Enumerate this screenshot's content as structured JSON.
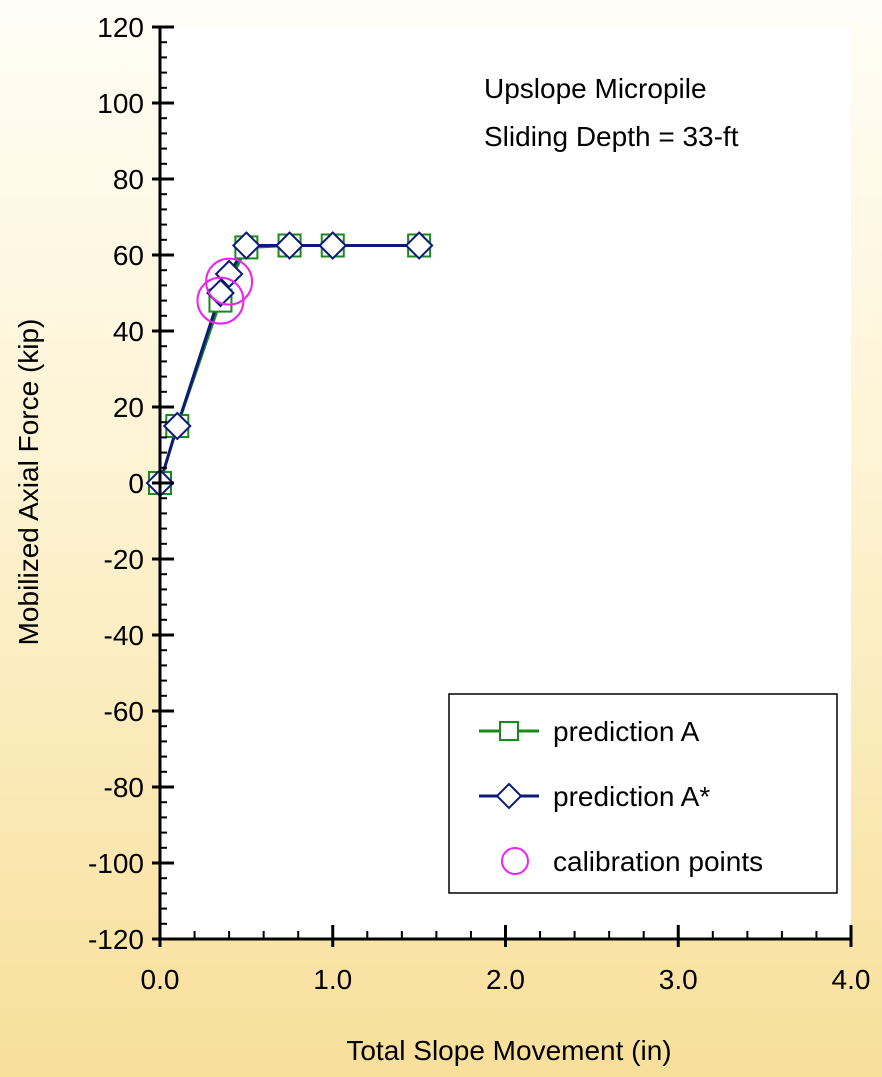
{
  "chart_data": {
    "type": "line",
    "title": "",
    "annotation": [
      "Upslope Micropile",
      "Sliding Depth = 33-ft"
    ],
    "xlabel": "Total Slope Movement (in)",
    "ylabel": "Mobilized Axial Force (kip)",
    "xlim": [
      0,
      4
    ],
    "ylim": [
      -120,
      120
    ],
    "x_major_ticks": [
      0,
      1,
      2,
      3,
      4
    ],
    "x_tick_labels": [
      "0.0",
      "1.0",
      "2.0",
      "3.0",
      "4.0"
    ],
    "x_minor_step": 0.2,
    "y_major_ticks": [
      -120,
      -100,
      -80,
      -60,
      -40,
      -20,
      0,
      20,
      40,
      60,
      80,
      100,
      120
    ],
    "y_tick_labels": [
      "-120",
      "-100",
      "-80",
      "-60",
      "-40",
      "-20",
      "0",
      "20",
      "40",
      "60",
      "80",
      "100",
      "120"
    ],
    "y_minor_step": 4,
    "grid": false,
    "legend_position": "bottom-right",
    "series": [
      {
        "name": "prediction A",
        "marker": "square",
        "color": "#1a8a1a",
        "x": [
          0,
          0.1,
          0.35,
          0.5,
          0.75,
          1.0,
          1.5
        ],
        "y": [
          0,
          15,
          48,
          62,
          62.5,
          62.5,
          62.5
        ]
      },
      {
        "name": "prediction A*",
        "marker": "diamond",
        "color": "#0c1a7a",
        "x": [
          0,
          0.1,
          0.35,
          0.4,
          0.5,
          0.75,
          1.0,
          1.5
        ],
        "y": [
          0,
          15,
          50,
          55,
          62.5,
          62.5,
          62.5,
          62.5
        ]
      },
      {
        "name": "calibration points",
        "marker": "circle",
        "color": "#ee22ee",
        "line": false,
        "x": [
          0.35,
          0.4
        ],
        "y": [
          48,
          53
        ]
      }
    ]
  }
}
